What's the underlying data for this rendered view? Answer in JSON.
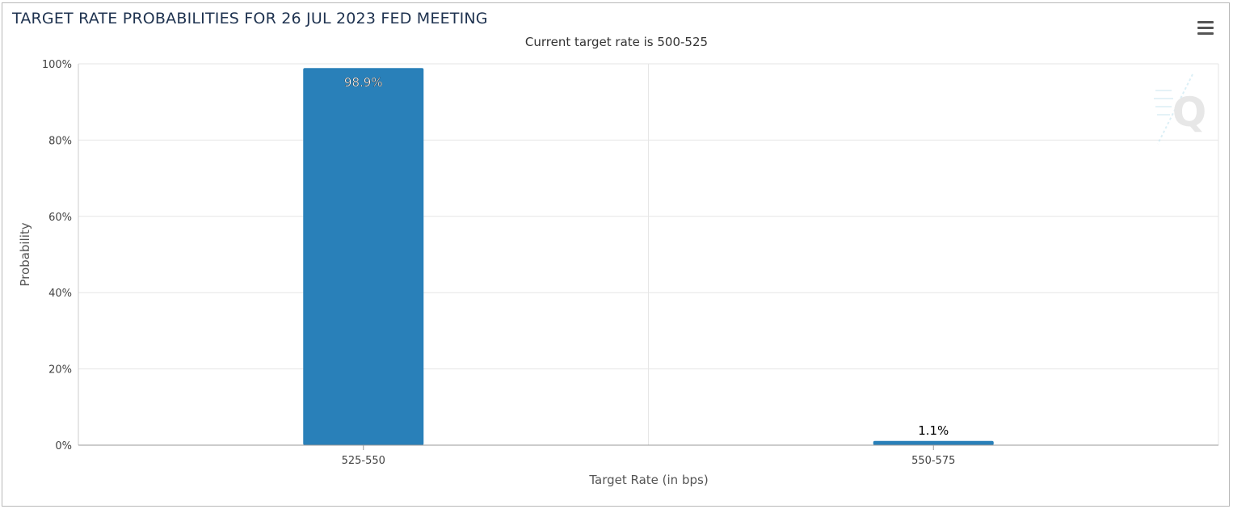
{
  "page": {
    "title": "TARGET RATE PROBABILITIES FOR 26 JUL 2023 FED MEETING",
    "subtitle": "Current target rate is 500-525"
  },
  "icons": {
    "menu": "hamburger-menu-icon",
    "watermark": "q-logo-watermark"
  },
  "colors": {
    "bar": "#2980b9",
    "grid": "#e6e6e6",
    "axis": "#999999",
    "title": "#1f3350"
  },
  "chart_data": {
    "type": "bar",
    "title": "TARGET RATE PROBABILITIES FOR 26 JUL 2023 FED MEETING",
    "subtitle": "Current target rate is 500-525",
    "categories": [
      "525-550",
      "550-575"
    ],
    "values": [
      98.9,
      1.1
    ],
    "data_labels": [
      "98.9%",
      "1.1%"
    ],
    "xlabel": "Target Rate (in bps)",
    "ylabel": "Probability",
    "ylim": [
      0,
      100
    ],
    "yticks": [
      0,
      20,
      40,
      60,
      80,
      100
    ],
    "ytick_labels": [
      "0%",
      "20%",
      "40%",
      "60%",
      "80%",
      "100%"
    ],
    "grid": true,
    "legend": "none"
  }
}
